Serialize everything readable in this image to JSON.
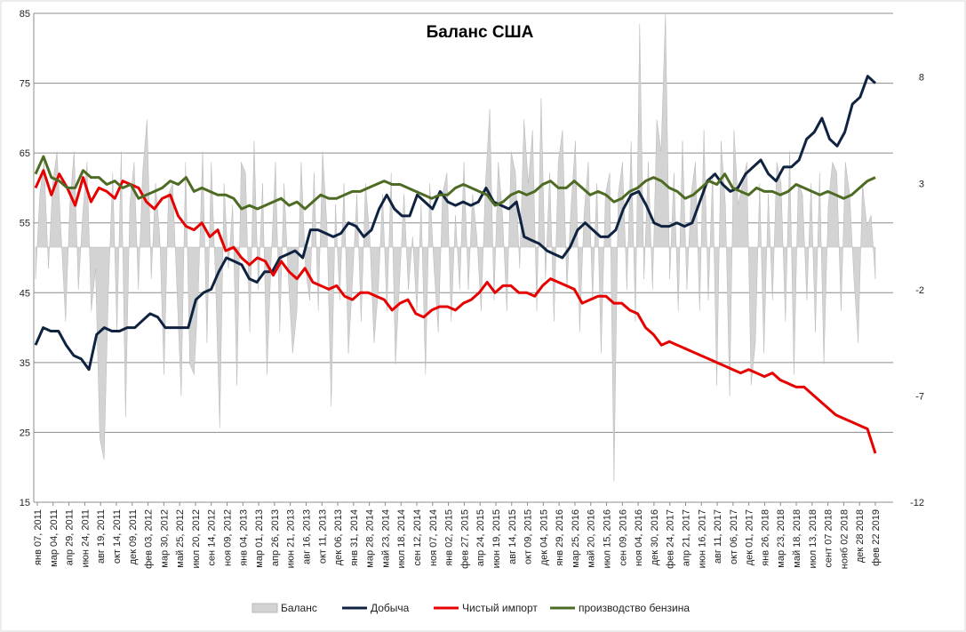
{
  "chart_data": {
    "type": "line",
    "title": "Баланс США",
    "left_axis": {
      "ylim": [
        15,
        85
      ],
      "ticks": [
        "15",
        "25",
        "35",
        "45",
        "55",
        "65",
        "75",
        "85"
      ]
    },
    "right_axis": {
      "ylim": [
        -12,
        11
      ],
      "ticks": [
        "-12",
        "-7",
        "-2",
        "3",
        "8"
      ]
    },
    "x_tick_labels": [
      "янв 07, 2011",
      "мар 04, 2011",
      "апр 29, 2011",
      "июн 24, 2011",
      "авг 19, 2011",
      "окт 14, 2011",
      "дек 09, 2011",
      "фев 03, 2012",
      "мар 30, 2012",
      "май 25, 2012",
      "июл 20, 2012",
      "сен 14, 2012",
      "ноя 09, 2012",
      "янв 04, 2013",
      "мар 01, 2013",
      "апр 26, 2013",
      "июн 21, 2013",
      "авг 16, 2013",
      "окт 11, 2013",
      "дек 06, 2013",
      "янв 31, 2014",
      "мар 28, 2014",
      "май 23, 2014",
      "июл 18, 2014",
      "сен 12, 2014",
      "ноя 07, 2014",
      "янв 02, 2015",
      "фев 27, 2015",
      "апр 24, 2015",
      "июн 19, 2015",
      "авг 14, 2015",
      "окт 09, 2015",
      "дек 04, 2015",
      "янв 29, 2016",
      "мар 25, 2016",
      "май 20, 2016",
      "июл 15, 2016",
      "сен 09, 2016",
      "ноя 04, 2016",
      "дек 30, 2016",
      "фев 24, 2017",
      "апр 21, 2017",
      "июн 16, 2017",
      "авг 11, 2017",
      "окт 06, 2017",
      "дек 01, 2017",
      "янв 26, 2018",
      "мар 23, 2018",
      "май 18, 2018",
      "июл 13, 2018",
      "сент 07 2018",
      "нояб 02 2018",
      "дек 28 2018",
      "фев 22 2019"
    ],
    "grid": "horizontal",
    "legend_position": "bottom",
    "series": [
      {
        "name": "Баланс",
        "type": "area",
        "axis": "right",
        "color": "#d3d3d3",
        "values": [
          -1.5,
          2.5,
          4.0,
          -1.0,
          3.0,
          4.5,
          0.5,
          -3.5,
          2.0,
          4.5,
          -2.0,
          1.5,
          4.0,
          -3.0,
          -1.0,
          -9.0,
          -10.0,
          -2.0,
          3.5,
          -4.0,
          4.5,
          -8.0,
          2.0,
          4.0,
          -2.0,
          3.5,
          6.0,
          -1.5,
          3.0,
          0.5,
          -6.0,
          2.5,
          3.0,
          -2.0,
          -7.0,
          4.0,
          -5.5,
          -6.0,
          -2.0,
          4.5,
          -4.5,
          4.0,
          -1.5,
          -8.5,
          3.0,
          -1.0,
          2.0,
          -6.5,
          4.0,
          3.5,
          -4.0,
          5.0,
          -2.0,
          3.0,
          -6.0,
          -0.5,
          4.0,
          -4.0,
          3.0,
          -1.5,
          -5.0,
          -3.0,
          4.0,
          -1.0,
          -2.5,
          3.5,
          -3.0,
          4.5,
          1.0,
          -7.5,
          2.0,
          -2.5,
          3.0,
          -5.0,
          -1.5,
          2.5,
          -3.5,
          3.0,
          0.5,
          -4.5,
          -2.0,
          2.5,
          -3.0,
          3.5,
          -5.5,
          -1.5,
          2.5,
          -2.0,
          0.5,
          -3.0,
          2.0,
          -6.0,
          3.0,
          -1.0,
          -4.0,
          2.5,
          3.5,
          -3.5,
          1.5,
          -2.0,
          4.0,
          -2.0,
          2.5,
          0.5,
          -3.0,
          3.0,
          6.5,
          -2.5,
          4.0,
          1.5,
          -3.0,
          4.5,
          3.5,
          -1.0,
          6.0,
          3.0,
          5.5,
          -3.0,
          7.0,
          -1.5,
          3.5,
          -3.5,
          4.0,
          5.5,
          -2.0,
          2.0,
          5.0,
          -4.0,
          1.5,
          4.0,
          -2.5,
          3.0,
          -5.0,
          2.5,
          3.5,
          -11.0,
          2.5,
          4.0,
          -2.0,
          5.0,
          -3.5,
          10.5,
          -1.5,
          4.0,
          -2.0,
          6.0,
          4.5,
          11.0,
          -1.5,
          3.5,
          -3.0,
          5.0,
          -2.0,
          2.5,
          4.0,
          -3.0,
          5.5,
          -2.5,
          3.5,
          -6.5,
          5.0,
          2.0,
          -7.0,
          5.5,
          2.0,
          3.0,
          4.0,
          -6.5,
          -4.5,
          3.0,
          -5.0,
          2.5,
          -2.5,
          4.0,
          3.0,
          -3.5,
          4.5,
          -6.0,
          3.0,
          2.5,
          -2.5,
          3.0,
          -4.0,
          3.5,
          -5.5,
          2.0,
          4.0,
          3.5,
          -3.0,
          4.0,
          2.5,
          -1.5,
          -4.5,
          3.0,
          1.0,
          1.5,
          -1.5
        ]
      },
      {
        "name": "Добыча",
        "type": "line",
        "axis": "left",
        "color": "#0f2341",
        "values": [
          37.5,
          40.0,
          39.5,
          39.5,
          37.5,
          36.0,
          35.5,
          34.0,
          39.0,
          40.0,
          39.5,
          39.5,
          40.0,
          40.0,
          41.0,
          42.0,
          41.5,
          40.0,
          40.0,
          40.0,
          40.0,
          44.0,
          45.0,
          45.5,
          48.0,
          50.0,
          49.5,
          49.0,
          47.0,
          46.5,
          48.0,
          48.0,
          50.0,
          50.5,
          51.0,
          50.0,
          54.0,
          54.0,
          53.5,
          53.0,
          53.5,
          55.0,
          54.5,
          53.0,
          54.0,
          57.0,
          59.0,
          57.0,
          56.0,
          56.0,
          59.0,
          58.0,
          57.0,
          59.5,
          58.0,
          57.5,
          58.0,
          57.5,
          58.0,
          60.0,
          58.0,
          57.5,
          57.0,
          58.0,
          53.0,
          52.5,
          52.0,
          51.0,
          50.5,
          50.0,
          51.5,
          54.0,
          55.0,
          54.0,
          53.0,
          53.0,
          54.0,
          57.0,
          59.0,
          59.5,
          57.5,
          55.0,
          54.5,
          54.5,
          55.0,
          54.5,
          55.0,
          58.0,
          61.0,
          62.0,
          60.5,
          59.5,
          60.0,
          62.0,
          63.0,
          64.0,
          62.0,
          61.0,
          63.0,
          63.0,
          64.0,
          67.0,
          68.0,
          70.0,
          67.0,
          66.0,
          68.0,
          72.0,
          73.0,
          76.0,
          75.0
        ],
        "tail_start_index": 0
      },
      {
        "name": "Чистый импорт",
        "type": "line",
        "axis": "left",
        "color": "#e60000",
        "values": [
          60.0,
          62.5,
          59.0,
          62.0,
          60.0,
          57.5,
          61.5,
          58.0,
          60.0,
          59.5,
          58.5,
          61.0,
          60.5,
          60.0,
          58.0,
          57.0,
          58.5,
          59.0,
          56.0,
          54.5,
          54.0,
          55.0,
          53.0,
          54.0,
          51.0,
          51.5,
          50.0,
          49.0,
          50.0,
          49.5,
          47.5,
          49.5,
          48.0,
          47.0,
          48.5,
          46.5,
          46.0,
          45.5,
          46.0,
          44.5,
          44.0,
          45.0,
          45.0,
          44.5,
          44.0,
          42.5,
          43.5,
          44.0,
          42.0,
          41.5,
          42.5,
          43.0,
          43.0,
          42.5,
          43.5,
          44.0,
          45.0,
          46.5,
          45.0,
          46.0,
          46.0,
          45.0,
          45.0,
          44.5,
          46.0,
          47.0,
          46.5,
          46.0,
          45.5,
          43.5,
          44.0,
          44.5,
          44.5,
          43.5,
          43.5,
          42.5,
          42.0,
          40.0,
          39.0,
          37.5,
          38.0,
          37.5,
          37.0,
          36.5,
          36.0,
          35.5,
          35.0,
          34.5,
          34.0,
          33.5,
          34.0,
          33.5,
          33.0,
          33.5,
          32.5,
          32.0,
          31.5,
          31.5,
          30.5,
          29.5,
          28.5,
          27.5,
          27.0,
          26.5,
          26.0,
          25.5,
          22.0
        ]
      },
      {
        "name": "производство бензина",
        "type": "line",
        "axis": "left",
        "color": "#4e6b24",
        "values": [
          62.0,
          64.5,
          61.5,
          61.0,
          60.0,
          60.0,
          62.5,
          61.5,
          61.5,
          60.5,
          61.0,
          60.0,
          60.5,
          58.5,
          59.0,
          59.5,
          60.0,
          61.0,
          60.5,
          61.5,
          59.5,
          60.0,
          59.5,
          59.0,
          59.0,
          58.5,
          57.0,
          57.5,
          57.0,
          57.5,
          58.0,
          58.5,
          57.5,
          58.0,
          57.0,
          58.0,
          59.0,
          58.5,
          58.5,
          59.0,
          59.5,
          59.5,
          60.0,
          60.5,
          61.0,
          60.5,
          60.5,
          60.0,
          59.5,
          59.0,
          58.5,
          59.0,
          59.0,
          60.0,
          60.5,
          60.0,
          59.5,
          59.0,
          57.5,
          58.0,
          59.0,
          59.5,
          59.0,
          59.5,
          60.5,
          61.0,
          60.0,
          60.0,
          61.0,
          60.0,
          59.0,
          59.5,
          59.0,
          58.0,
          58.5,
          59.5,
          60.0,
          61.0,
          61.5,
          61.0,
          60.0,
          59.5,
          58.5,
          59.0,
          60.0,
          61.0,
          60.5,
          62.0,
          60.0,
          59.5,
          59.0,
          60.0,
          59.5,
          59.5,
          59.0,
          59.5,
          60.5,
          60.0,
          59.5,
          59.0,
          59.5,
          59.0,
          58.5,
          59.0,
          60.0,
          61.0,
          61.5
        ]
      }
    ]
  }
}
